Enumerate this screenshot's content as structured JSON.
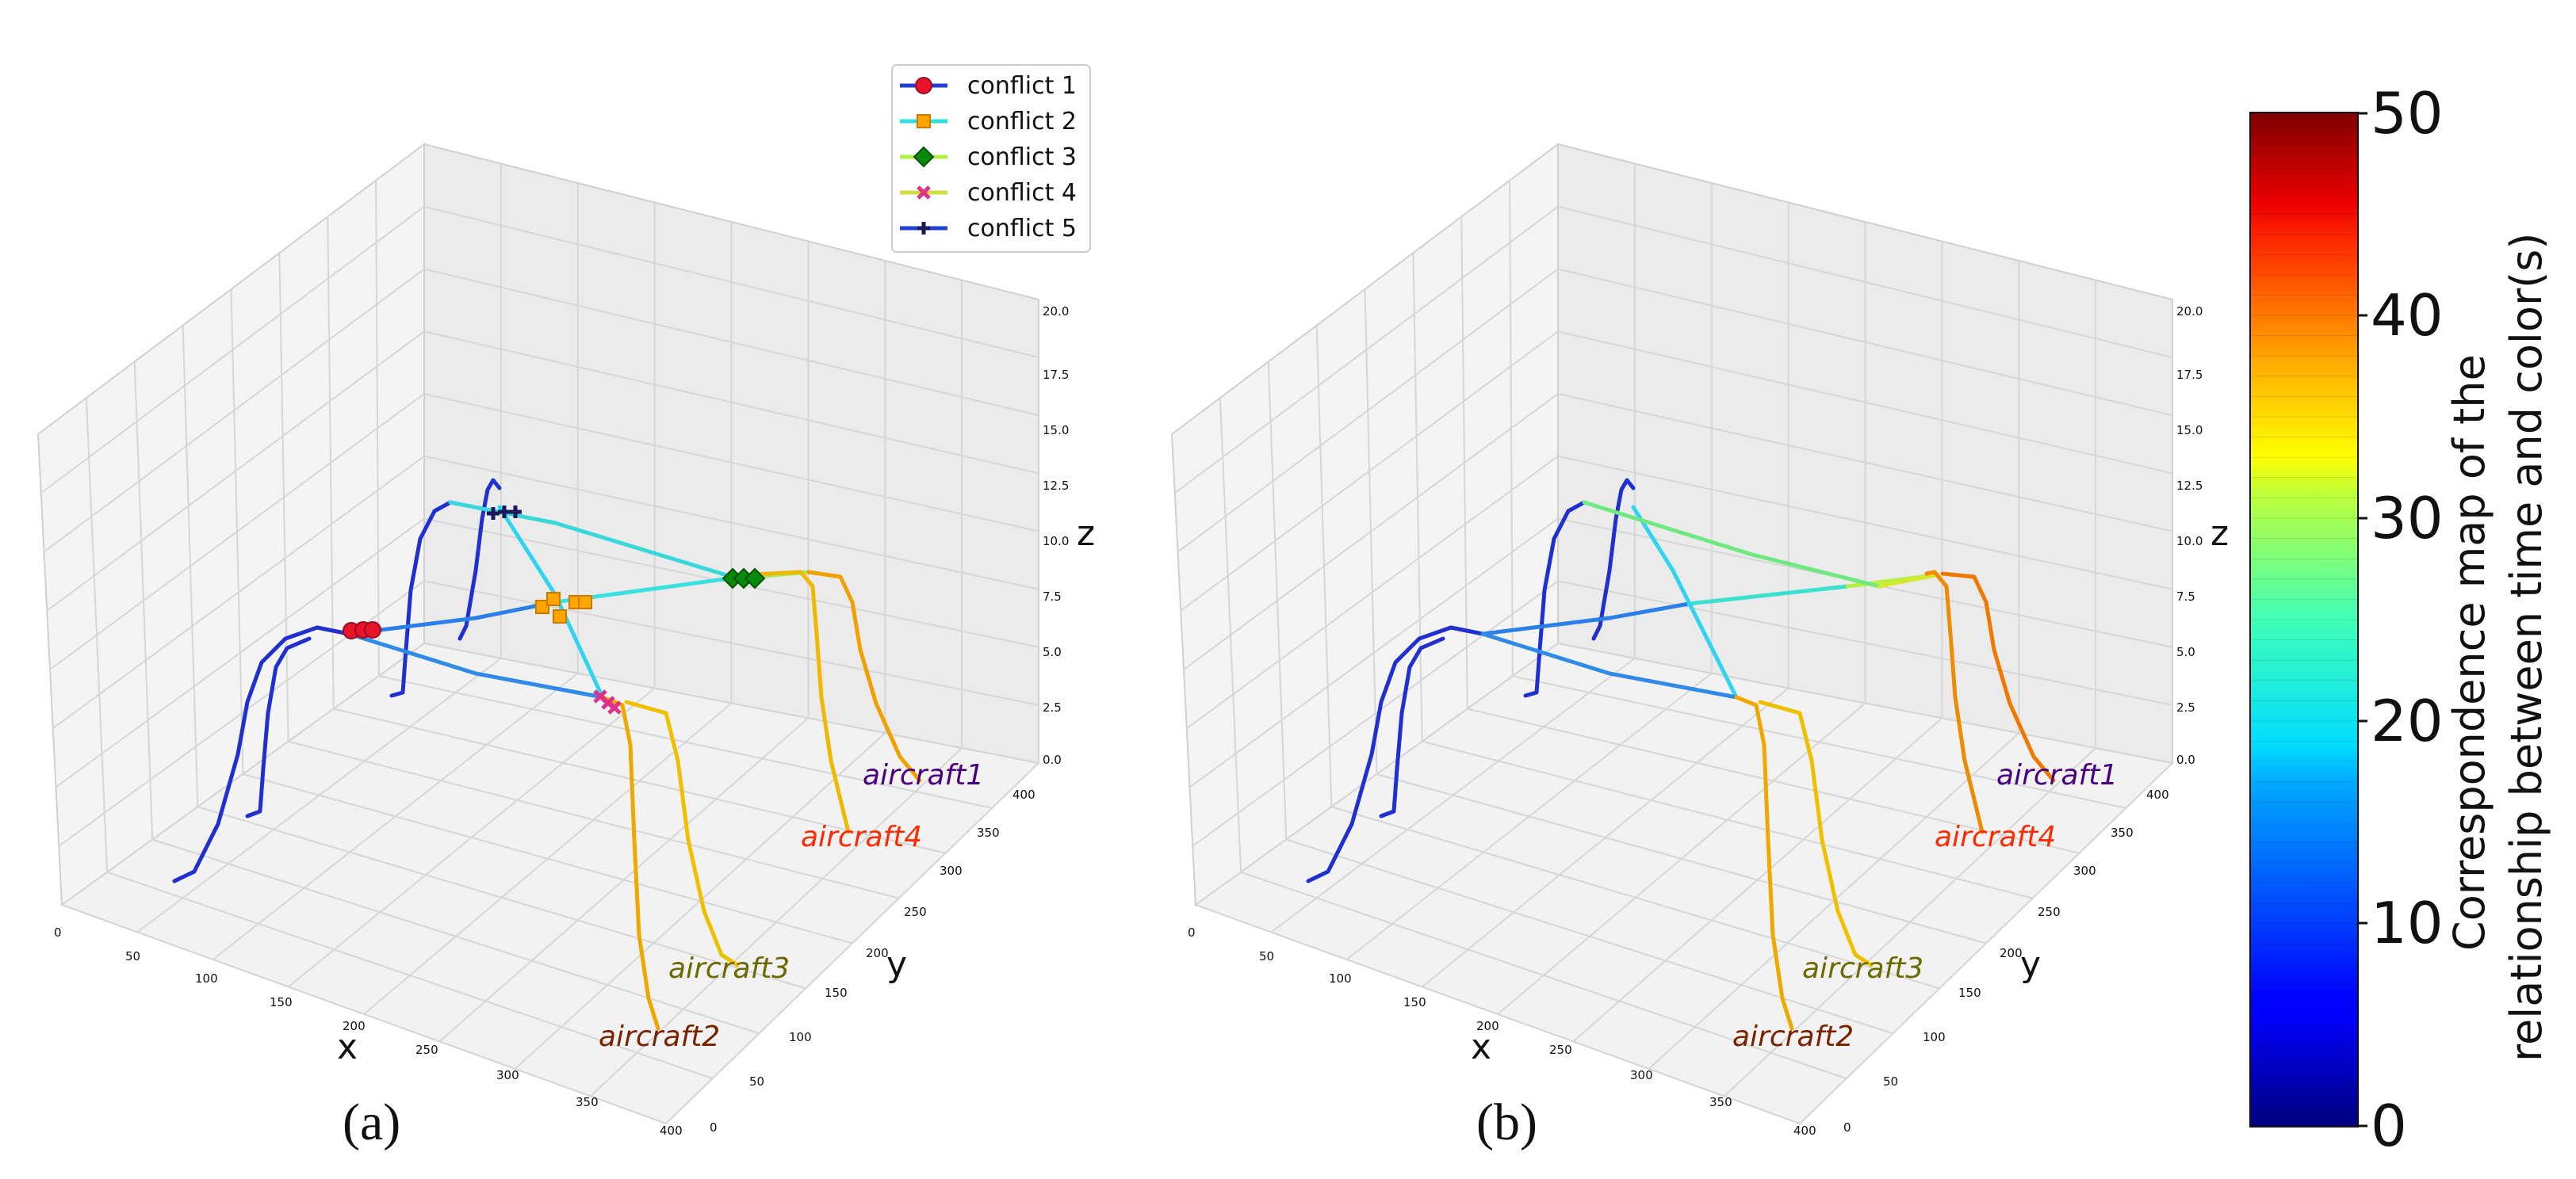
{
  "chart_data": [
    {
      "type": "line3d",
      "caption": "(a)",
      "xlabel": "x",
      "ylabel": "y",
      "zlabel": "z",
      "xlim": [
        0,
        400
      ],
      "ylim": [
        0,
        400
      ],
      "zlim": [
        0,
        20
      ],
      "xticks": [
        "0",
        "50",
        "100",
        "150",
        "200",
        "250",
        "300",
        "350",
        "400"
      ],
      "yticks": [
        "0",
        "50",
        "100",
        "150",
        "200",
        "250",
        "300",
        "350",
        "400"
      ],
      "zticks": [
        "0.0",
        "2.5",
        "5.0",
        "7.5",
        "10.0",
        "12.5",
        "15.0",
        "17.5",
        "20.0"
      ],
      "aircraft": [
        {
          "name": "aircraft1",
          "color": "#4b0082"
        },
        {
          "name": "aircraft2",
          "color": "#7a2200"
        },
        {
          "name": "aircraft3",
          "color": "#6b6a00"
        },
        {
          "name": "aircraft4",
          "color": "#ff2a00"
        }
      ],
      "legend": [
        {
          "label": "conflict 1",
          "color": "#e8142c",
          "marker": "circle",
          "line": "#1f3fd6"
        },
        {
          "label": "conflict 2",
          "color": "#ffa500",
          "marker": "square",
          "line": "#2fe0e0"
        },
        {
          "label": "conflict 3",
          "color": "#0a8a0a",
          "marker": "diamond",
          "line": "#b4f040"
        },
        {
          "label": "conflict 4",
          "color": "#e0308a",
          "marker": "x",
          "line": "#d0e040"
        },
        {
          "label": "conflict 5",
          "color": "#1a1a5a",
          "marker": "plus",
          "line": "#1f3fd6"
        }
      ]
    },
    {
      "type": "line3d",
      "caption": "(b)",
      "xlabel": "x",
      "ylabel": "y",
      "zlabel": "z",
      "xlim": [
        0,
        400
      ],
      "ylim": [
        0,
        400
      ],
      "zlim": [
        0,
        20
      ],
      "xticks": [
        "0",
        "50",
        "100",
        "150",
        "200",
        "250",
        "300",
        "350",
        "400"
      ],
      "yticks": [
        "0",
        "50",
        "100",
        "150",
        "200",
        "250",
        "300",
        "350",
        "400"
      ],
      "zticks": [
        "0.0",
        "2.5",
        "5.0",
        "7.5",
        "10.0",
        "12.5",
        "15.0",
        "17.5",
        "20.0"
      ],
      "aircraft": [
        {
          "name": "aircraft1",
          "color": "#4b0082"
        },
        {
          "name": "aircraft2",
          "color": "#7a2200"
        },
        {
          "name": "aircraft3",
          "color": "#6b6a00"
        },
        {
          "name": "aircraft4",
          "color": "#ff2a00"
        }
      ]
    }
  ],
  "colorbar": {
    "label_line1": "Correspondence map of the",
    "label_line2": "relationship between time and color(s)",
    "ticks": [
      "0",
      "10",
      "20",
      "30",
      "40",
      "50"
    ],
    "range": [
      0,
      50
    ],
    "colormap": "jet"
  }
}
